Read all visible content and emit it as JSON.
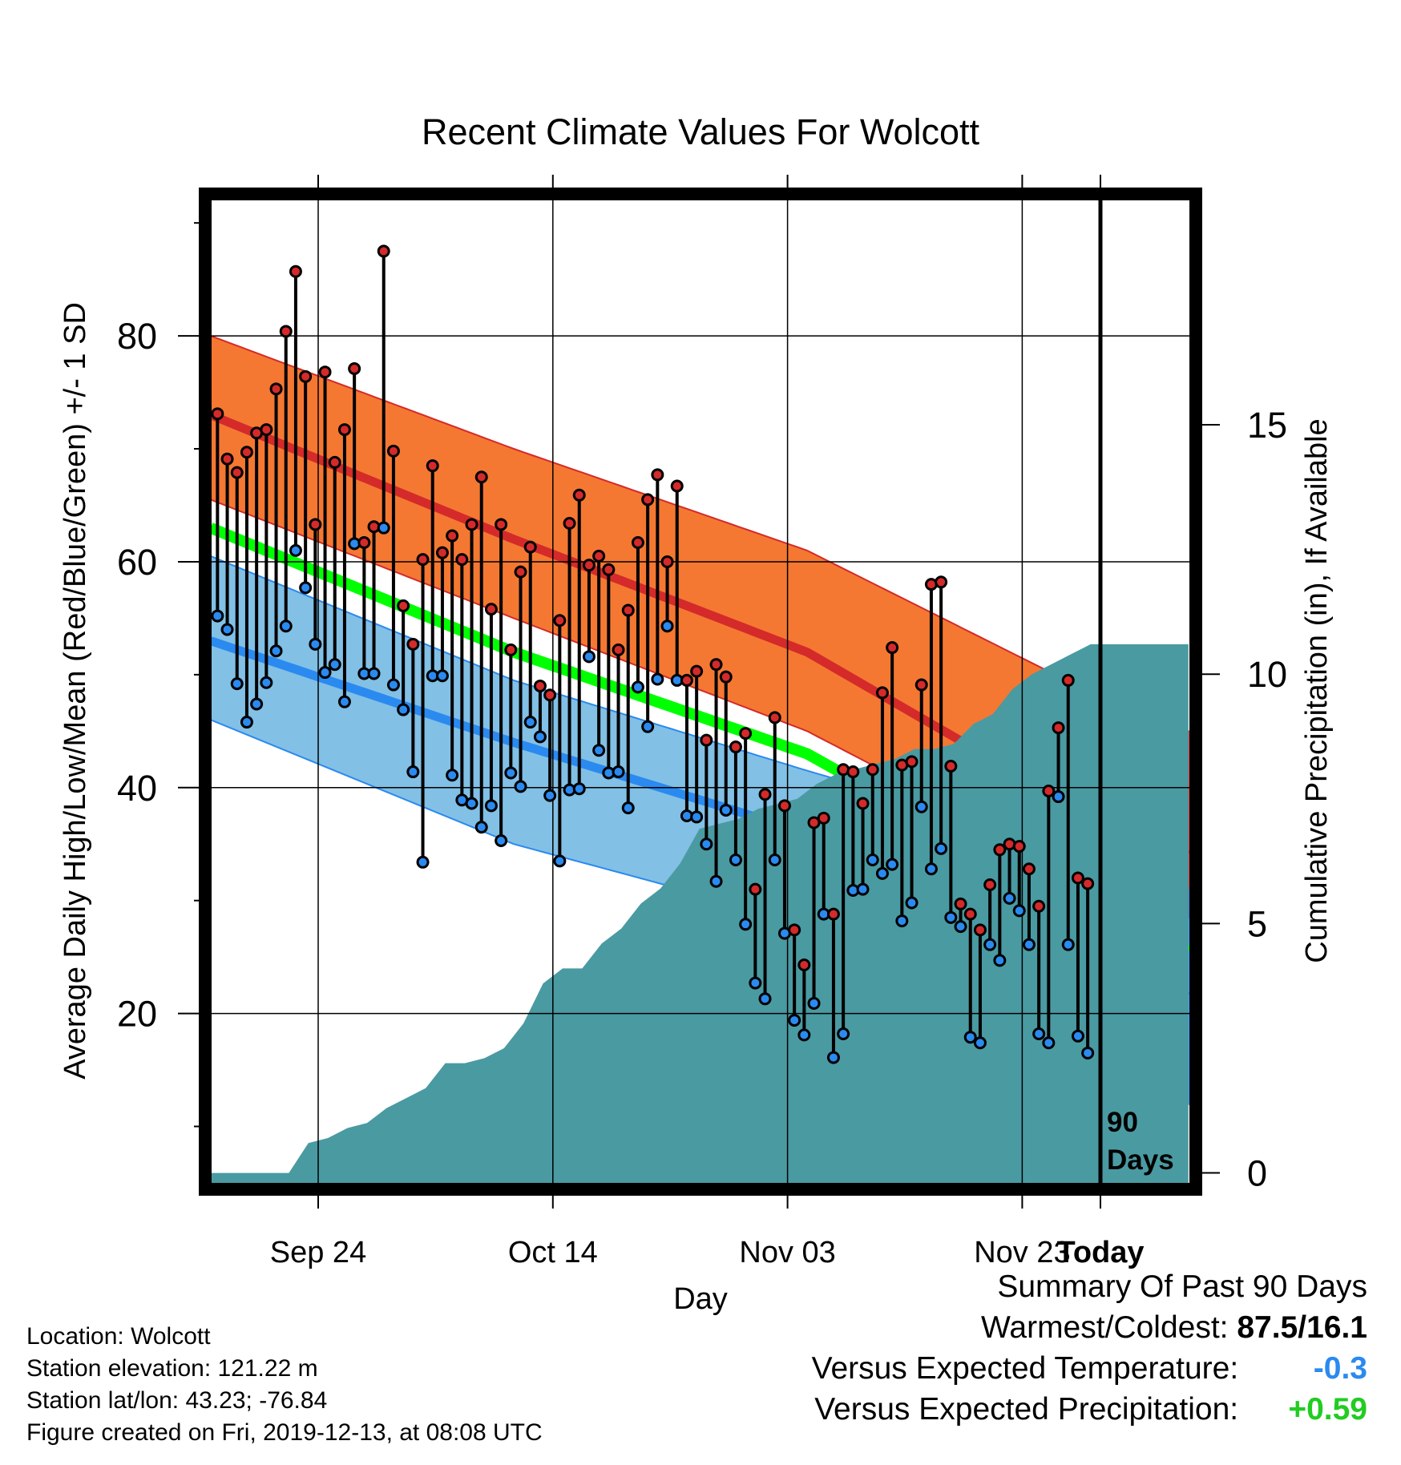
{
  "chart_data": {
    "type": "line",
    "title": "Recent Climate Values For Wolcott",
    "xlabel": "Day",
    "ylabel": "Average Daily High/Low/Mean (Red/Blue/Green) +/- 1 SD",
    "y2label": "Cumulative Precipitation (in), If Available",
    "x_tick_labels": [
      "Sep 24",
      "Oct 14",
      "Nov 03",
      "Nov 23",
      "Today"
    ],
    "x_range_days_before_today": [
      -91,
      9
    ],
    "today_marker_label": [
      "90",
      "Days"
    ],
    "ylim": [
      5,
      92
    ],
    "y_ticks": [
      20,
      40,
      60,
      80
    ],
    "y2lim": [
      -0.2,
      19.5
    ],
    "y2_ticks": [
      0,
      5,
      10,
      15
    ],
    "normals": {
      "x_days_before_today": [
        -91,
        -60,
        -30,
        0,
        9
      ],
      "high_plus_sd": [
        80,
        70,
        61,
        48,
        45
      ],
      "high_mean": [
        73,
        62,
        52,
        37,
        34
      ],
      "high_minus_sd": [
        65.5,
        55,
        45,
        31.5,
        28.5
      ],
      "mean": [
        63,
        52,
        43,
        28.5,
        25.5
      ],
      "low_plus_sd": [
        60.5,
        49.5,
        41.5,
        34,
        31
      ],
      "low_mean": [
        53,
        44,
        36,
        25.5,
        21.5
      ],
      "low_minus_sd": [
        46,
        35,
        28,
        15.5,
        12
      ]
    },
    "observed": {
      "highs": [
        73.1,
        69.1,
        67.9,
        69.7,
        71.4,
        71.7,
        75.3,
        80.4,
        85.7,
        76.4,
        63.3,
        76.8,
        68.8,
        71.7,
        77.1,
        61.7,
        63.1,
        87.5,
        69.8,
        56.1,
        52.7,
        60.2,
        68.5,
        60.8,
        62.3,
        60.2,
        63.3,
        67.5,
        55.8,
        63.3,
        52.2,
        59.1,
        61.3,
        49.0,
        48.2,
        54.8,
        63.4,
        65.9,
        59.7,
        60.5,
        59.3,
        52.2,
        55.7,
        61.7,
        65.5,
        67.7,
        60.0,
        66.7,
        49.5,
        50.3,
        44.2,
        50.9,
        49.8,
        43.6,
        44.8,
        31.0,
        39.4,
        46.2,
        38.4,
        27.4,
        24.3,
        36.9,
        37.3,
        28.8,
        41.6,
        41.4,
        38.6,
        41.6,
        48.4,
        52.4,
        42.0,
        42.3,
        49.1,
        58.0,
        58.2,
        41.9,
        29.7,
        28.8,
        27.4,
        31.4,
        34.5,
        35.0,
        34.8,
        32.8,
        29.5,
        39.7,
        45.3,
        49.5,
        32.0,
        31.5
      ],
      "lows": [
        55.2,
        54.0,
        49.2,
        45.8,
        47.4,
        49.3,
        52.1,
        54.3,
        61.0,
        57.7,
        52.7,
        50.2,
        50.9,
        47.6,
        61.6,
        50.1,
        50.1,
        63.0,
        49.1,
        46.9,
        41.4,
        33.4,
        49.9,
        49.9,
        41.1,
        38.9,
        38.6,
        36.5,
        38.4,
        35.3,
        41.3,
        40.1,
        45.8,
        44.5,
        39.3,
        33.5,
        39.8,
        39.9,
        51.6,
        43.3,
        41.3,
        41.4,
        38.2,
        48.9,
        45.4,
        49.6,
        54.3,
        49.5,
        37.5,
        37.4,
        35.0,
        31.7,
        38.0,
        33.6,
        27.9,
        22.7,
        21.3,
        33.6,
        27.1,
        19.4,
        18.1,
        20.9,
        28.8,
        16.1,
        18.2,
        30.9,
        31.0,
        33.6,
        32.4,
        33.2,
        28.2,
        29.8,
        38.3,
        32.8,
        34.6,
        28.5,
        27.7,
        17.9,
        17.4,
        26.1,
        24.7,
        30.2,
        29.1,
        26.1,
        18.2,
        17.4,
        39.2,
        26.1,
        18.0,
        16.5
      ]
    },
    "precip_cumulative": {
      "x_days_before_today": [
        -91,
        -83,
        -81,
        -79,
        -77,
        -75,
        -73,
        -71,
        -69,
        -67,
        -65,
        -63,
        -61,
        -59,
        -57,
        -55,
        -53,
        -51,
        -49,
        -47,
        -45,
        -43,
        -41,
        -39,
        -37,
        -35,
        -33,
        -31,
        -29,
        -27,
        -25,
        -23,
        -21,
        -19,
        -17,
        -15,
        -13,
        -11,
        -9,
        -7,
        -5,
        -3,
        -1,
        0,
        9
      ],
      "values": [
        0,
        0,
        0.6,
        0.7,
        0.9,
        1.0,
        1.3,
        1.5,
        1.7,
        2.2,
        2.2,
        2.3,
        2.5,
        3.0,
        3.8,
        4.1,
        4.1,
        4.6,
        4.9,
        5.4,
        5.7,
        6.2,
        6.9,
        7.0,
        7.1,
        7.3,
        7.4,
        7.5,
        7.8,
        8.0,
        8.1,
        8.2,
        8.3,
        8.5,
        8.5,
        8.6,
        9.0,
        9.2,
        9.7,
        10.0,
        10.2,
        10.4,
        10.6,
        10.6,
        10.6
      ]
    },
    "colors": {
      "high_band": "#f47832",
      "high_mean_line": "#d42a2a",
      "low_band": "#82c0e5",
      "low_mean_line": "#2a8af0",
      "overlap_band": "#8f1818",
      "mean_line": "#00ff00",
      "precip_fill": "#4a9aa2",
      "high_marker": "#d42a2a",
      "low_marker": "#2a8af0"
    }
  },
  "footer": {
    "location": "Location: Wolcott",
    "elevation": "Station elevation: 121.22 m",
    "latlon": "Station lat/lon: 43.23; -76.84",
    "created": "Figure created on Fri, 2019-12-13, at 08:08 UTC"
  },
  "summary": {
    "heading": "Summary Of Past 90 Days",
    "warmest_coldest_label": "Warmest/Coldest:",
    "warmest_coldest_value": "87.5/16.1",
    "temp_label": "Versus Expected Temperature:",
    "temp_value": "-0.3",
    "temp_color": "#2a8af0",
    "precip_label": "Versus Expected Precipitation:",
    "precip_value": "+0.59",
    "precip_color": "#22cc22"
  }
}
